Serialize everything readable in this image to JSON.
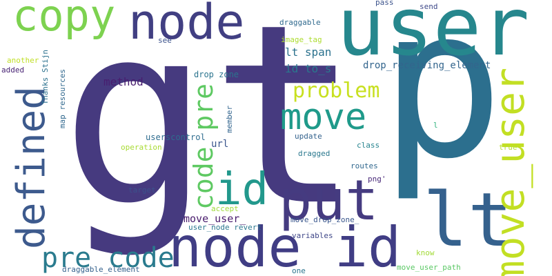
{
  "words": [
    {
      "text": "gt",
      "color": "#463a7f"
    },
    {
      "text": "p",
      "color": "#2c6f8e"
    },
    {
      "text": "user",
      "color": "#26878d"
    },
    {
      "text": "node id",
      "color": "#403d84"
    },
    {
      "text": "put",
      "color": "#453b80"
    },
    {
      "text": "lt",
      "color": "#35618d"
    },
    {
      "text": "node",
      "color": "#413f82"
    },
    {
      "text": "copy",
      "color": "#7dd250"
    },
    {
      "text": "move_user",
      "color": "#c2df23"
    },
    {
      "text": "move",
      "color": "#1f9a8a"
    },
    {
      "text": "defined",
      "color": "#3d5a8d"
    },
    {
      "text": "id",
      "color": "#22988c"
    },
    {
      "text": "pre code",
      "color": "#2a7b8e"
    },
    {
      "text": "code pre",
      "color": "#5ec962"
    },
    {
      "text": "problem",
      "color": "#c8e020"
    },
    {
      "text": "method",
      "color": "#481d6f"
    },
    {
      "text": "lt span",
      "color": "#2c728e"
    },
    {
      "text": "id to_s",
      "color": "#2a798e"
    },
    {
      "text": "drop_receiving_element",
      "color": "#33658d"
    },
    {
      "text": "move_user_",
      "color": "#481a6c"
    },
    {
      "text": "drop zone",
      "color": "#2b748e"
    },
    {
      "text": "url",
      "color": "#39558c"
    },
    {
      "text": "userscontrol",
      "color": "#2e6c8e"
    },
    {
      "text": "update",
      "color": "#33628d"
    },
    {
      "text": "dragged",
      "color": "#2a788e"
    },
    {
      "text": "operation",
      "color": "#a8db34"
    },
    {
      "text": "target",
      "color": "#3b528b"
    },
    {
      "text": "accept",
      "color": "#9fda3a"
    },
    {
      "text": "user_node revert",
      "color": "#2a778e"
    },
    {
      "text": "move_drop_zone_",
      "color": "#39568c"
    },
    {
      "text": "variables",
      "color": "#3f4788"
    },
    {
      "text": "routes",
      "color": "#31688e"
    },
    {
      "text": "class",
      "color": "#25838e"
    },
    {
      "text": "png'",
      "color": "#482878"
    },
    {
      "text": "true",
      "color": "#b5de2b"
    },
    {
      "text": "know",
      "color": "#a2da37"
    },
    {
      "text": "move_user_path",
      "color": "#5ac864"
    },
    {
      "text": "one",
      "color": "#2b758e"
    },
    {
      "text": "draggable_element",
      "color": "#34618d"
    },
    {
      "text": "image_tag",
      "color": "#addc30"
    },
    {
      "text": "see",
      "color": "#3b528b"
    },
    {
      "text": "draggable",
      "color": "#306a8e"
    },
    {
      "text": "pass",
      "color": "#3b528b"
    },
    {
      "text": "send",
      "color": "#3e4989"
    },
    {
      "text": "another",
      "color": "#c0df25"
    },
    {
      "text": "added",
      "color": "#482374"
    },
    {
      "text": "Thanks Stijn",
      "color": "#2c718e"
    },
    {
      "text": "map resources",
      "color": "#31688e"
    },
    {
      "text": "member",
      "color": "#32658e"
    },
    {
      "text": "l",
      "color": "#30b37e"
    }
  ]
}
